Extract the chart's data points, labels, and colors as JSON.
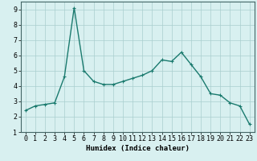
{
  "x": [
    0,
    1,
    2,
    3,
    4,
    5,
    6,
    7,
    8,
    9,
    10,
    11,
    12,
    13,
    14,
    15,
    16,
    17,
    18,
    19,
    20,
    21,
    22,
    23
  ],
  "y": [
    2.4,
    2.7,
    2.8,
    2.9,
    4.6,
    9.1,
    5.0,
    4.3,
    4.1,
    4.1,
    4.3,
    4.5,
    4.7,
    5.0,
    5.7,
    5.6,
    6.2,
    5.4,
    4.6,
    3.5,
    3.4,
    2.9,
    2.7,
    1.5
  ],
  "line_color": "#1a7a6e",
  "marker": "+",
  "marker_size": 3,
  "linewidth": 1.0,
  "bg_color": "#d8f0f0",
  "grid_color": "#aacece",
  "xlabel": "Humidex (Indice chaleur)",
  "xlim": [
    -0.5,
    23.5
  ],
  "ylim": [
    1,
    9.5
  ],
  "yticks": [
    1,
    2,
    3,
    4,
    5,
    6,
    7,
    8,
    9
  ],
  "xtick_labels": [
    "0",
    "1",
    "2",
    "3",
    "4",
    "5",
    "6",
    "7",
    "8",
    "9",
    "10",
    "11",
    "12",
    "13",
    "14",
    "15",
    "16",
    "17",
    "18",
    "19",
    "20",
    "21",
    "22",
    "23"
  ],
  "xlabel_fontsize": 6.5,
  "tick_fontsize": 6.0
}
